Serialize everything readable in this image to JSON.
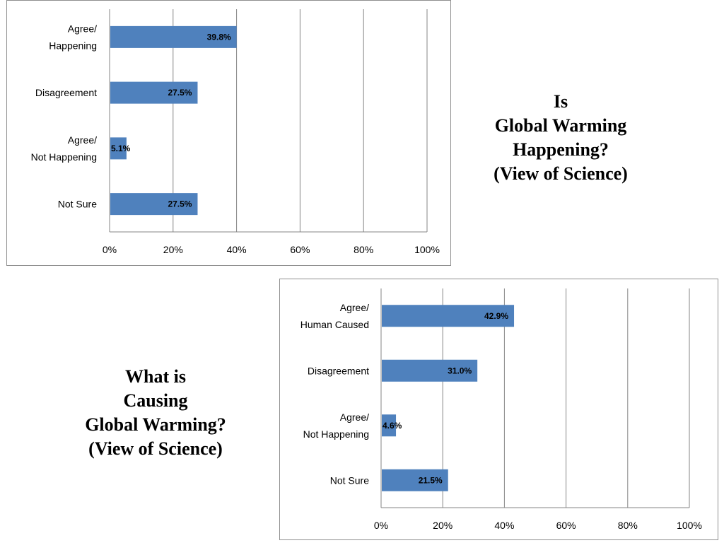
{
  "colors": {
    "bar": "#4f81bd",
    "gridline": "#868686",
    "axis": "#868686",
    "border": "#8f8f8f"
  },
  "captions": {
    "top": [
      "Is",
      "Global Warming",
      "Happening?",
      "(View of Science)"
    ],
    "bottom": [
      "What is",
      "Causing",
      "Global Warming?",
      "(View of Science)"
    ]
  },
  "chart_data": [
    {
      "type": "bar",
      "orientation": "horizontal",
      "categories": [
        [
          "Agree/",
          "Happening"
        ],
        [
          "Disagreement"
        ],
        [
          "Agree/",
          "Not Happening"
        ],
        [
          "Not Sure"
        ]
      ],
      "values": [
        39.8,
        27.5,
        5.1,
        27.5
      ],
      "data_labels": [
        "39.8%",
        "27.5%",
        "5.1%",
        "27.5%"
      ],
      "xlim": [
        0,
        100
      ],
      "xticks": [
        "0%",
        "20%",
        "40%",
        "60%",
        "80%",
        "100%"
      ],
      "grid": true,
      "legend": "none"
    },
    {
      "type": "bar",
      "orientation": "horizontal",
      "categories": [
        [
          "Agree/",
          "Human Caused"
        ],
        [
          "Disagreement"
        ],
        [
          "Agree/",
          "Not Happening"
        ],
        [
          "Not Sure"
        ]
      ],
      "values": [
        42.9,
        31.0,
        4.6,
        21.5
      ],
      "data_labels": [
        "42.9%",
        "31.0%",
        "4.6%",
        "21.5%"
      ],
      "xlim": [
        0,
        100
      ],
      "xticks": [
        "0%",
        "20%",
        "40%",
        "60%",
        "80%",
        "100%"
      ],
      "grid": true,
      "legend": "none"
    }
  ]
}
